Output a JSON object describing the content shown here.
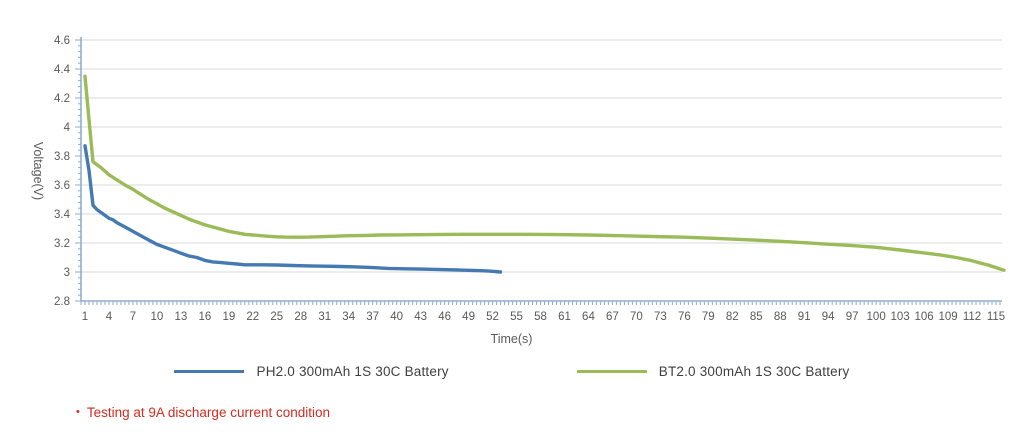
{
  "chart_data": {
    "type": "line",
    "title": "",
    "xlabel": "Time(s)",
    "ylabel": "Voltage(V)",
    "xlim": [
      1,
      116
    ],
    "ylim": [
      2.8,
      4.6
    ],
    "grid": "horizontal",
    "legend_position": "bottom",
    "xticks": [
      1,
      4,
      7,
      10,
      13,
      16,
      19,
      22,
      25,
      28,
      31,
      34,
      37,
      40,
      43,
      46,
      49,
      52,
      55,
      58,
      61,
      64,
      67,
      70,
      73,
      76,
      79,
      82,
      85,
      88,
      91,
      94,
      97,
      100,
      103,
      106,
      109,
      112,
      115
    ],
    "yticks": [
      {
        "v": 2.8,
        "label": "2.8"
      },
      {
        "v": 3.0,
        "label": "3"
      },
      {
        "v": 3.2,
        "label": "3.2"
      },
      {
        "v": 3.4,
        "label": "3.4"
      },
      {
        "v": 3.6,
        "label": "3.6"
      },
      {
        "v": 3.8,
        "label": "3.8"
      },
      {
        "v": 4.0,
        "label": "4"
      },
      {
        "v": 4.2,
        "label": "4.2"
      },
      {
        "v": 4.4,
        "label": "4.4"
      },
      {
        "v": 4.6,
        "label": "4.6"
      }
    ],
    "colors": {
      "grid": "#d9d9d9",
      "axis": "#8fAECE",
      "tick_label": "#595959",
      "axis_title": "#595959"
    },
    "series": [
      {
        "name": "PH2.0 300mAh 1S 30C Battery",
        "color": "#4579b2",
        "points": [
          [
            1,
            3.87
          ],
          [
            1.5,
            3.7
          ],
          [
            2,
            3.46
          ],
          [
            2.5,
            3.43
          ],
          [
            3,
            3.41
          ],
          [
            4,
            3.37
          ],
          [
            4.5,
            3.36
          ],
          [
            5,
            3.34
          ],
          [
            6,
            3.31
          ],
          [
            7,
            3.28
          ],
          [
            8,
            3.25
          ],
          [
            9,
            3.22
          ],
          [
            10,
            3.19
          ],
          [
            11,
            3.17
          ],
          [
            12,
            3.15
          ],
          [
            13,
            3.13
          ],
          [
            14,
            3.11
          ],
          [
            15,
            3.1
          ],
          [
            16,
            3.08
          ],
          [
            17,
            3.07
          ],
          [
            18,
            3.065
          ],
          [
            19,
            3.06
          ],
          [
            20,
            3.055
          ],
          [
            21,
            3.05
          ],
          [
            23,
            3.05
          ],
          [
            25,
            3.048
          ],
          [
            27,
            3.045
          ],
          [
            29,
            3.042
          ],
          [
            31,
            3.04
          ],
          [
            33,
            3.038
          ],
          [
            35,
            3.035
          ],
          [
            37,
            3.03
          ],
          [
            39,
            3.025
          ],
          [
            41,
            3.022
          ],
          [
            43,
            3.02
          ],
          [
            45,
            3.018
          ],
          [
            47,
            3.015
          ],
          [
            49,
            3.012
          ],
          [
            51,
            3.008
          ],
          [
            52,
            3.005
          ],
          [
            53,
            3.0
          ]
        ]
      },
      {
        "name": "BT2.0 300mAh 1S 30C Battery",
        "color": "#9bbb59",
        "points": [
          [
            1,
            4.35
          ],
          [
            1.5,
            4.05
          ],
          [
            2,
            3.76
          ],
          [
            2.5,
            3.74
          ],
          [
            3,
            3.72
          ],
          [
            4,
            3.67
          ],
          [
            5,
            3.635
          ],
          [
            6,
            3.6
          ],
          [
            7,
            3.57
          ],
          [
            8,
            3.535
          ],
          [
            9,
            3.5
          ],
          [
            10,
            3.47
          ],
          [
            11,
            3.44
          ],
          [
            12,
            3.415
          ],
          [
            13,
            3.39
          ],
          [
            14,
            3.365
          ],
          [
            15,
            3.345
          ],
          [
            16,
            3.325
          ],
          [
            17,
            3.31
          ],
          [
            18,
            3.295
          ],
          [
            19,
            3.28
          ],
          [
            20,
            3.27
          ],
          [
            21,
            3.26
          ],
          [
            22,
            3.255
          ],
          [
            23,
            3.25
          ],
          [
            24,
            3.246
          ],
          [
            25,
            3.243
          ],
          [
            26,
            3.241
          ],
          [
            27,
            3.24
          ],
          [
            28,
            3.24
          ],
          [
            29,
            3.241
          ],
          [
            30,
            3.243
          ],
          [
            32,
            3.246
          ],
          [
            34,
            3.25
          ],
          [
            36,
            3.252
          ],
          [
            38,
            3.255
          ],
          [
            40,
            3.256
          ],
          [
            44,
            3.258
          ],
          [
            48,
            3.26
          ],
          [
            52,
            3.26
          ],
          [
            56,
            3.26
          ],
          [
            60,
            3.258
          ],
          [
            64,
            3.255
          ],
          [
            68,
            3.25
          ],
          [
            72,
            3.245
          ],
          [
            76,
            3.24
          ],
          [
            80,
            3.232
          ],
          [
            84,
            3.222
          ],
          [
            88,
            3.212
          ],
          [
            91,
            3.202
          ],
          [
            94,
            3.192
          ],
          [
            97,
            3.182
          ],
          [
            100,
            3.17
          ],
          [
            103,
            3.152
          ],
          [
            106,
            3.132
          ],
          [
            108,
            3.118
          ],
          [
            110,
            3.1
          ],
          [
            112,
            3.078
          ],
          [
            113,
            3.062
          ],
          [
            114,
            3.048
          ],
          [
            115,
            3.03
          ],
          [
            116,
            3.012
          ]
        ]
      }
    ]
  },
  "note": {
    "bullet": "•",
    "text": "Testing at 9A discharge current condition",
    "color": "#d22b20"
  }
}
